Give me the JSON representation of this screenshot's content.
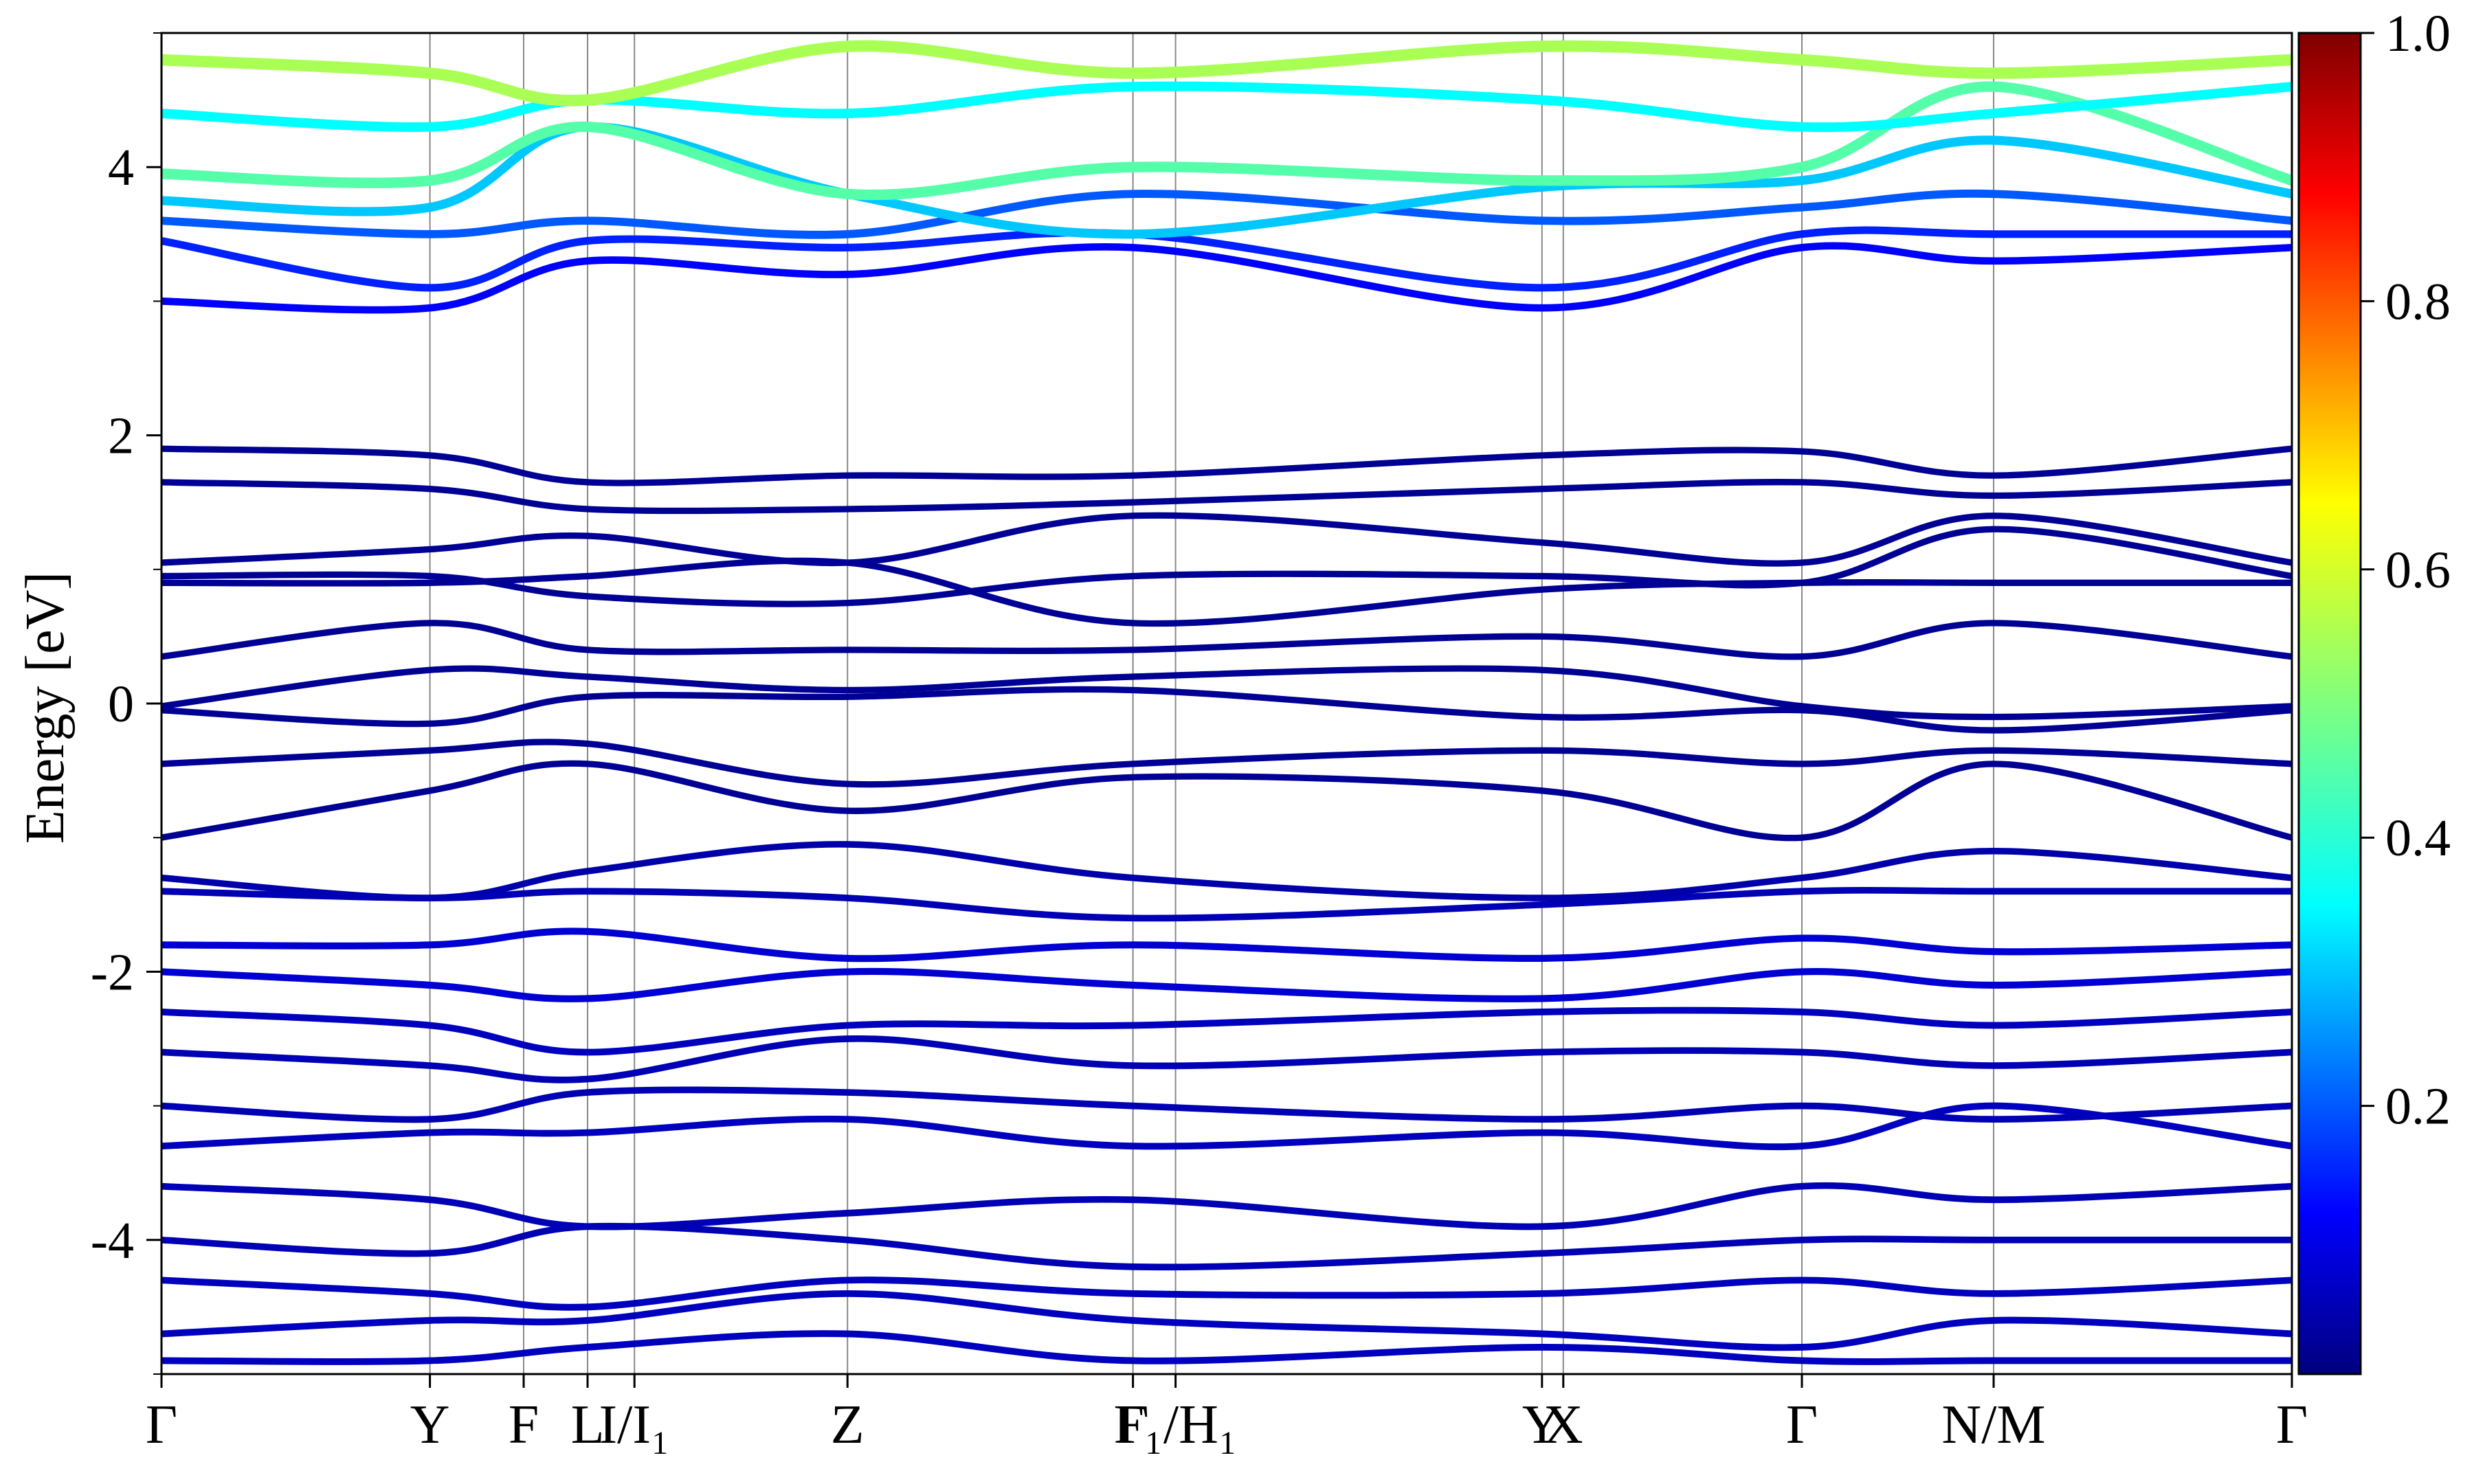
{
  "chart_data": {
    "type": "line",
    "title": "",
    "xlabel": "",
    "ylabel": "Energy [eV]",
    "ylim": [
      -5,
      5
    ],
    "y_ticks": [
      -4,
      -2,
      0,
      2,
      4
    ],
    "grid": "vertical lines at high-symmetry points",
    "legend": "none",
    "k_path_labels": [
      "Γ",
      "Y",
      "F",
      "L",
      "I/I₁",
      "Z",
      "Γ",
      "F₁/H₁",
      "Y",
      "X",
      "Γ",
      "N/M",
      "Γ"
    ],
    "k_path_positions": [
      0.0,
      0.126,
      0.17,
      0.2,
      0.222,
      0.322,
      0.456,
      0.476,
      0.648,
      0.658,
      0.77,
      0.86,
      1.0
    ],
    "colorbar": {
      "colormap": "jet",
      "range": [
        0.0,
        1.0
      ],
      "tick_labels": [
        "0.2",
        "0.4",
        "0.6",
        "0.8",
        "1.0"
      ],
      "ticks": [
        0.2,
        0.4,
        0.6,
        0.8,
        1.0
      ]
    },
    "series": [
      {
        "x": [
          0.0,
          0.126,
          0.2,
          0.322,
          0.456,
          0.648,
          0.77,
          0.86,
          1.0
        ],
        "values": [
          1.9,
          1.85,
          1.65,
          1.7,
          1.7,
          1.85,
          1.88,
          1.7,
          1.9
        ],
        "weight": 0.02
      },
      {
        "x": [
          0.0,
          0.126,
          0.2,
          0.322,
          0.456,
          0.648,
          0.77,
          0.86,
          1.0
        ],
        "values": [
          1.65,
          1.6,
          1.45,
          1.45,
          1.5,
          1.6,
          1.65,
          1.55,
          1.65
        ],
        "weight": 0.02
      },
      {
        "x": [
          0.0,
          0.126,
          0.2,
          0.322,
          0.456,
          0.648,
          0.77,
          0.86,
          1.0
        ],
        "values": [
          1.05,
          1.15,
          1.25,
          1.05,
          1.4,
          1.2,
          1.05,
          1.4,
          1.05
        ],
        "weight": 0.02
      },
      {
        "x": [
          0.0,
          0.126,
          0.2,
          0.322,
          0.456,
          0.648,
          0.77,
          0.86,
          1.0
        ],
        "values": [
          0.95,
          0.95,
          0.8,
          0.75,
          0.95,
          0.95,
          0.9,
          1.3,
          0.95
        ],
        "weight": 0.02
      },
      {
        "x": [
          0.0,
          0.126,
          0.2,
          0.322,
          0.456,
          0.648,
          0.77,
          0.86,
          1.0
        ],
        "values": [
          0.9,
          0.9,
          0.95,
          1.05,
          0.6,
          0.85,
          0.9,
          0.9,
          0.9
        ],
        "weight": 0.02
      },
      {
        "x": [
          0.0,
          0.126,
          0.2,
          0.322,
          0.456,
          0.648,
          0.77,
          0.86,
          1.0
        ],
        "values": [
          0.35,
          0.6,
          0.4,
          0.4,
          0.4,
          0.5,
          0.35,
          0.6,
          0.35
        ],
        "weight": 0.02
      },
      {
        "x": [
          0.0,
          0.126,
          0.2,
          0.322,
          0.456,
          0.648,
          0.77,
          0.86,
          1.0
        ],
        "values": [
          -0.02,
          0.25,
          0.2,
          0.1,
          0.2,
          0.25,
          -0.02,
          -0.1,
          -0.02
        ],
        "weight": 0.02
      },
      {
        "x": [
          0.0,
          0.126,
          0.2,
          0.322,
          0.456,
          0.648,
          0.77,
          0.86,
          1.0
        ],
        "values": [
          -0.05,
          -0.15,
          0.05,
          0.05,
          0.1,
          -0.1,
          -0.05,
          -0.2,
          -0.05
        ],
        "weight": 0.02
      },
      {
        "x": [
          0.0,
          0.126,
          0.2,
          0.322,
          0.456,
          0.648,
          0.77,
          0.86,
          1.0
        ],
        "values": [
          -0.45,
          -0.35,
          -0.3,
          -0.6,
          -0.45,
          -0.35,
          -0.45,
          -0.35,
          -0.45
        ],
        "weight": 0.02
      },
      {
        "x": [
          0.0,
          0.126,
          0.2,
          0.322,
          0.456,
          0.648,
          0.77,
          0.86,
          1.0
        ],
        "values": [
          -1.0,
          -0.65,
          -0.45,
          -0.8,
          -0.55,
          -0.65,
          -1.0,
          -0.45,
          -1.0
        ],
        "weight": 0.02
      },
      {
        "x": [
          0.0,
          0.126,
          0.2,
          0.322,
          0.456,
          0.648,
          0.77,
          0.86,
          1.0
        ],
        "values": [
          -1.3,
          -1.45,
          -1.25,
          -1.05,
          -1.3,
          -1.45,
          -1.3,
          -1.1,
          -1.3
        ],
        "weight": 0.04
      },
      {
        "x": [
          0.0,
          0.126,
          0.2,
          0.322,
          0.456,
          0.648,
          0.77,
          0.86,
          1.0
        ],
        "values": [
          -1.4,
          -1.45,
          -1.4,
          -1.45,
          -1.6,
          -1.5,
          -1.4,
          -1.4,
          -1.4
        ],
        "weight": 0.05
      },
      {
        "x": [
          0.0,
          0.126,
          0.2,
          0.322,
          0.456,
          0.648,
          0.77,
          0.86,
          1.0
        ],
        "values": [
          -1.8,
          -1.8,
          -1.7,
          -1.9,
          -1.8,
          -1.9,
          -1.75,
          -1.85,
          -1.8
        ],
        "weight": 0.08
      },
      {
        "x": [
          0.0,
          0.126,
          0.2,
          0.322,
          0.456,
          0.648,
          0.77,
          0.86,
          1.0
        ],
        "values": [
          -2.0,
          -2.1,
          -2.2,
          -2.0,
          -2.1,
          -2.2,
          -2.0,
          -2.1,
          -2.0
        ],
        "weight": 0.08
      },
      {
        "x": [
          0.0,
          0.126,
          0.2,
          0.322,
          0.456,
          0.648,
          0.77,
          0.86,
          1.0
        ],
        "values": [
          -2.3,
          -2.4,
          -2.6,
          -2.4,
          -2.4,
          -2.3,
          -2.3,
          -2.4,
          -2.3
        ],
        "weight": 0.06
      },
      {
        "x": [
          0.0,
          0.126,
          0.2,
          0.322,
          0.456,
          0.648,
          0.77,
          0.86,
          1.0
        ],
        "values": [
          -2.6,
          -2.7,
          -2.8,
          -2.5,
          -2.7,
          -2.6,
          -2.6,
          -2.7,
          -2.6
        ],
        "weight": 0.05
      },
      {
        "x": [
          0.0,
          0.126,
          0.2,
          0.322,
          0.456,
          0.648,
          0.77,
          0.86,
          1.0
        ],
        "values": [
          -3.0,
          -3.1,
          -2.9,
          -2.9,
          -3.0,
          -3.1,
          -3.0,
          -3.1,
          -3.0
        ],
        "weight": 0.05
      },
      {
        "x": [
          0.0,
          0.126,
          0.2,
          0.322,
          0.456,
          0.648,
          0.77,
          0.86,
          1.0
        ],
        "values": [
          -3.3,
          -3.2,
          -3.2,
          -3.1,
          -3.3,
          -3.2,
          -3.3,
          -3.0,
          -3.3
        ],
        "weight": 0.06
      },
      {
        "x": [
          0.0,
          0.126,
          0.2,
          0.322,
          0.456,
          0.648,
          0.77,
          0.86,
          1.0
        ],
        "values": [
          -3.6,
          -3.7,
          -3.9,
          -3.8,
          -3.7,
          -3.9,
          -3.6,
          -3.7,
          -3.6
        ],
        "weight": 0.05
      },
      {
        "x": [
          0.0,
          0.126,
          0.2,
          0.322,
          0.456,
          0.648,
          0.77,
          0.86,
          1.0
        ],
        "values": [
          -4.0,
          -4.1,
          -3.9,
          -4.0,
          -4.2,
          -4.1,
          -4.0,
          -4.0,
          -4.0
        ],
        "weight": 0.05
      },
      {
        "x": [
          0.0,
          0.126,
          0.2,
          0.322,
          0.456,
          0.648,
          0.77,
          0.86,
          1.0
        ],
        "values": [
          -4.3,
          -4.4,
          -4.5,
          -4.3,
          -4.4,
          -4.4,
          -4.3,
          -4.4,
          -4.3
        ],
        "weight": 0.06
      },
      {
        "x": [
          0.0,
          0.126,
          0.2,
          0.322,
          0.456,
          0.648,
          0.77,
          0.86,
          1.0
        ],
        "values": [
          -4.7,
          -4.6,
          -4.6,
          -4.4,
          -4.6,
          -4.7,
          -4.8,
          -4.6,
          -4.7
        ],
        "weight": 0.06
      },
      {
        "x": [
          0.0,
          0.126,
          0.2,
          0.322,
          0.456,
          0.648,
          0.77,
          0.86,
          1.0
        ],
        "values": [
          -4.9,
          -4.9,
          -4.8,
          -4.7,
          -4.9,
          -4.8,
          -4.9,
          -4.9,
          -4.9
        ],
        "weight": 0.06
      },
      {
        "x": [
          0.0,
          0.126,
          0.2,
          0.322,
          0.456,
          0.648,
          0.77,
          0.86,
          1.0
        ],
        "values": [
          3.0,
          2.95,
          3.3,
          3.2,
          3.4,
          2.95,
          3.4,
          3.3,
          3.4
        ],
        "weight": 0.12
      },
      {
        "x": [
          0.0,
          0.126,
          0.2,
          0.322,
          0.456,
          0.648,
          0.77,
          0.86,
          1.0
        ],
        "values": [
          3.45,
          3.1,
          3.45,
          3.4,
          3.5,
          3.1,
          3.5,
          3.5,
          3.5
        ],
        "weight": 0.15
      },
      {
        "x": [
          0.0,
          0.126,
          0.2,
          0.322,
          0.456,
          0.648,
          0.77,
          0.86,
          1.0
        ],
        "values": [
          3.6,
          3.5,
          3.6,
          3.5,
          3.8,
          3.6,
          3.7,
          3.8,
          3.6
        ],
        "weight": 0.2
      },
      {
        "x": [
          0.0,
          0.126,
          0.2,
          0.322,
          0.456,
          0.648,
          0.77,
          0.86,
          1.0
        ],
        "values": [
          3.75,
          3.7,
          4.3,
          3.8,
          3.5,
          3.85,
          3.9,
          4.2,
          3.8
        ],
        "weight": 0.3
      },
      {
        "x": [
          0.0,
          0.126,
          0.2,
          0.322,
          0.456,
          0.648,
          0.77,
          0.86,
          1.0
        ],
        "values": [
          3.95,
          3.9,
          4.3,
          3.8,
          4.0,
          3.9,
          4.0,
          4.6,
          3.9
        ],
        "weight": 0.45
      },
      {
        "x": [
          0.0,
          0.126,
          0.2,
          0.322,
          0.456,
          0.648,
          0.77,
          0.86,
          1.0
        ],
        "values": [
          4.4,
          4.3,
          4.5,
          4.4,
          4.6,
          4.5,
          4.3,
          4.4,
          4.6
        ],
        "weight": 0.35
      },
      {
        "x": [
          0.0,
          0.126,
          0.2,
          0.322,
          0.456,
          0.648,
          0.77,
          0.86,
          1.0
        ],
        "values": [
          4.8,
          4.7,
          4.5,
          4.9,
          4.7,
          4.9,
          4.8,
          4.7,
          4.8
        ],
        "weight": 0.55
      }
    ]
  }
}
